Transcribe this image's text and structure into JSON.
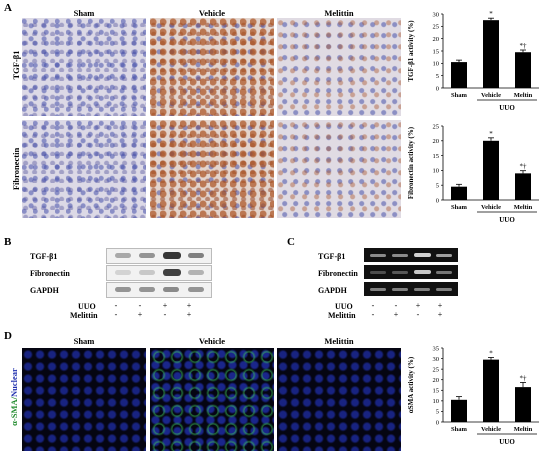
{
  "panels": {
    "a": "A",
    "b": "B",
    "c": "C",
    "d": "D"
  },
  "columns": [
    "Sham",
    "Vehicle",
    "Melittin"
  ],
  "ihc_rows": [
    "TGF-β1",
    "Fibronectin"
  ],
  "fluor_row_label": {
    "part1": "α-SMA/",
    "part2": "Nuclear"
  },
  "blot": {
    "rows": [
      "TGF-β1",
      "Fibronectin",
      "GAPDH"
    ],
    "uuo_label": "UUO",
    "melittin_label": "Melittin",
    "uuo_signs": [
      "-",
      "-",
      "+",
      "+"
    ],
    "melittin_signs": [
      "-",
      "+",
      "-",
      "+"
    ]
  },
  "gel": {
    "rows": [
      "TGF-β1",
      "Fibronectin",
      "GAPDH"
    ],
    "uuo_label": "UUO",
    "melittin_label": "Melittin",
    "uuo_signs": [
      "-",
      "-",
      "+",
      "+"
    ],
    "melittin_signs": [
      "-",
      "+",
      "-",
      "+"
    ]
  },
  "chart_data": [
    {
      "type": "bar",
      "categories": [
        "Sham",
        "Vehicle",
        "Meltin"
      ],
      "values": [
        10.5,
        27.5,
        14.5
      ],
      "errors": [
        0.8,
        0.8,
        0.9
      ],
      "markers": [
        "",
        "*",
        "*†"
      ],
      "ylabel": "TGF-β1 activity (%)",
      "ylim": [
        0,
        30
      ],
      "yticks": [
        "0",
        "5",
        "10",
        "15",
        "20",
        "25",
        "30"
      ],
      "group_label": "UUO"
    },
    {
      "type": "bar",
      "categories": [
        "Sham",
        "Vehicle",
        "Meltin"
      ],
      "values": [
        4.5,
        20.0,
        9.0
      ],
      "errors": [
        0.8,
        1.0,
        0.9
      ],
      "markers": [
        "",
        "*",
        "*†"
      ],
      "ylabel": "Fibronectin activity (%)",
      "ylim": [
        0,
        25
      ],
      "yticks": [
        "0",
        "5",
        "10",
        "15",
        "20",
        "25"
      ],
      "group_label": "UUO"
    },
    {
      "type": "bar",
      "categories": [
        "Sham",
        "Vehicle",
        "Meltin"
      ],
      "values": [
        10.5,
        29.5,
        16.5
      ],
      "errors": [
        1.5,
        1.0,
        2.2
      ],
      "markers": [
        "",
        "*",
        "*†"
      ],
      "ylabel": "αSMA activity (%)",
      "ylim": [
        0,
        35
      ],
      "yticks": [
        "0",
        "5",
        "10",
        "15",
        "20",
        "25",
        "30",
        "35"
      ],
      "group_label": "UUO"
    }
  ]
}
